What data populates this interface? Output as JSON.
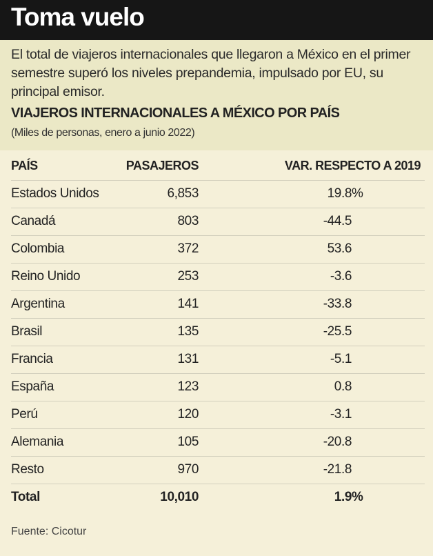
{
  "title": "Toma vuelo",
  "lead": "El total de viajeros internacionales que llegaron a México en el primer semestre superó los niveles prepandemia, impulsado por EU, su principal emisor.",
  "subtitle": "VIAJEROS INTERNACIONALES A MÉXICO POR PAÍS",
  "units": "(Miles de personas, enero a junio 2022)",
  "chart_data": {
    "type": "table",
    "columns": [
      "PAÍS",
      "PASAJEROS",
      "VAR. RESPECTO A 2019"
    ],
    "rows": [
      [
        "Estados Unidos",
        "6,853",
        "19.8",
        "%"
      ],
      [
        "Canadá",
        "803",
        "-44.5",
        ""
      ],
      [
        "Colombia",
        "372",
        "53.6",
        ""
      ],
      [
        "Reino Unido",
        "253",
        "-3.6",
        ""
      ],
      [
        "Argentina",
        "141",
        "-33.8",
        ""
      ],
      [
        "Brasil",
        "135",
        "-25.5",
        ""
      ],
      [
        "Francia",
        "131",
        "-5.1",
        ""
      ],
      [
        "España",
        "123",
        "0.8",
        ""
      ],
      [
        "Perú",
        "120",
        "-3.1",
        ""
      ],
      [
        "Alemania",
        "105",
        "-20.8",
        ""
      ],
      [
        "Resto",
        "970",
        "-21.8",
        ""
      ]
    ],
    "total": [
      "Total",
      "10,010",
      "1.9",
      "%"
    ]
  },
  "source": "Fuente: Cicotur",
  "colors": {
    "header": "#161616",
    "intro_bg": "#ebe8c6",
    "table_bg": "#f5f0d9"
  }
}
